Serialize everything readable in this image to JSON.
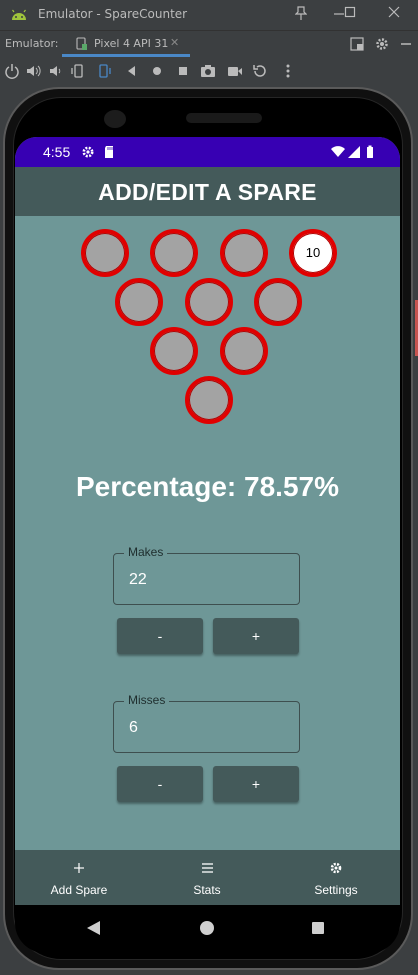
{
  "window": {
    "title": "Emulator - SpareCounter",
    "emulator_label": "Emulator:",
    "device_tab": "Pixel 4 API 31"
  },
  "toolbar_icons": [
    "power-icon",
    "volume-up-icon",
    "volume-down-icon",
    "rotate-left-icon",
    "rotate-right-icon",
    "back-icon",
    "home-icon",
    "overview-icon",
    "camera-icon",
    "record-icon",
    "replay-icon",
    "more-icon"
  ],
  "status": {
    "time": "4:55"
  },
  "app": {
    "title": "ADD/EDIT A SPARE",
    "pins": [
      {
        "label": "",
        "active": false
      },
      {
        "label": "",
        "active": false
      },
      {
        "label": "",
        "active": false
      },
      {
        "label": "10",
        "active": true
      },
      {
        "label": "",
        "active": false
      },
      {
        "label": "",
        "active": false
      },
      {
        "label": "",
        "active": false
      },
      {
        "label": "",
        "active": false
      },
      {
        "label": "",
        "active": false
      },
      {
        "label": "",
        "active": false
      }
    ],
    "percentage": "Percentage: 78.57%",
    "makes": {
      "label": "Makes",
      "value": "22",
      "minus": "-",
      "plus": "+"
    },
    "misses": {
      "label": "Misses",
      "value": "6",
      "minus": "-",
      "plus": "+"
    }
  },
  "nav": {
    "add_spare": "Add Spare",
    "stats": "Stats",
    "settings": "Settings"
  },
  "colors": {
    "status_bar": "#3700b3",
    "app_bar": "#445a5a",
    "background": "#6e9797",
    "pin_ring": "#e00000",
    "pin_fill": "#a3a3a3"
  }
}
